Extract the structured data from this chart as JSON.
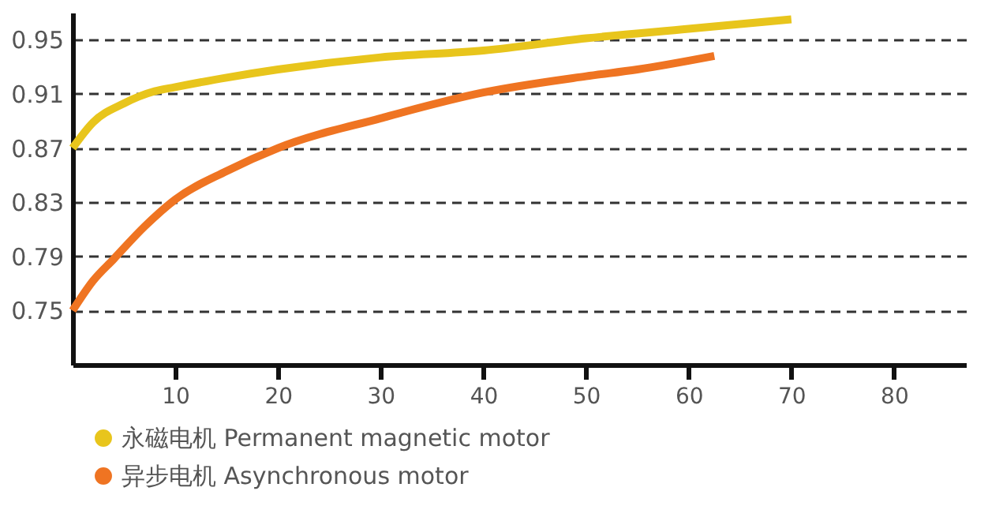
{
  "chart_data": {
    "type": "line",
    "x": [
      0,
      2,
      5,
      8,
      10,
      15,
      20,
      30,
      40,
      50,
      60,
      70
    ],
    "series": [
      {
        "name": "永磁电机 Permanent magnetic motor",
        "color": "#e8c51c",
        "values": [
          0.87,
          0.889,
          0.903,
          0.912,
          0.915,
          0.922,
          0.928,
          0.937,
          0.942,
          0.951,
          0.958,
          0.965
        ]
      },
      {
        "name": "异步电机 Asynchronous motor",
        "color": "#ef7422",
        "x": [
          0,
          2,
          4,
          7,
          10,
          15,
          20,
          30,
          40,
          50,
          55,
          62.5
        ],
        "values": [
          0.75,
          0.772,
          0.788,
          0.812,
          0.832,
          0.853,
          0.87,
          0.892,
          0.911,
          0.923,
          0.928,
          0.938
        ]
      }
    ],
    "xlim": [
      0,
      87
    ],
    "xticks": [
      10,
      20,
      30,
      40,
      50,
      60,
      70,
      80
    ],
    "ylim": [
      0.71,
      0.97
    ],
    "yticks": [
      0.75,
      0.79,
      0.83,
      0.87,
      0.91,
      0.95
    ],
    "grid": "y",
    "legend": "bottom left",
    "line_style": "solid",
    "marker": "none"
  }
}
